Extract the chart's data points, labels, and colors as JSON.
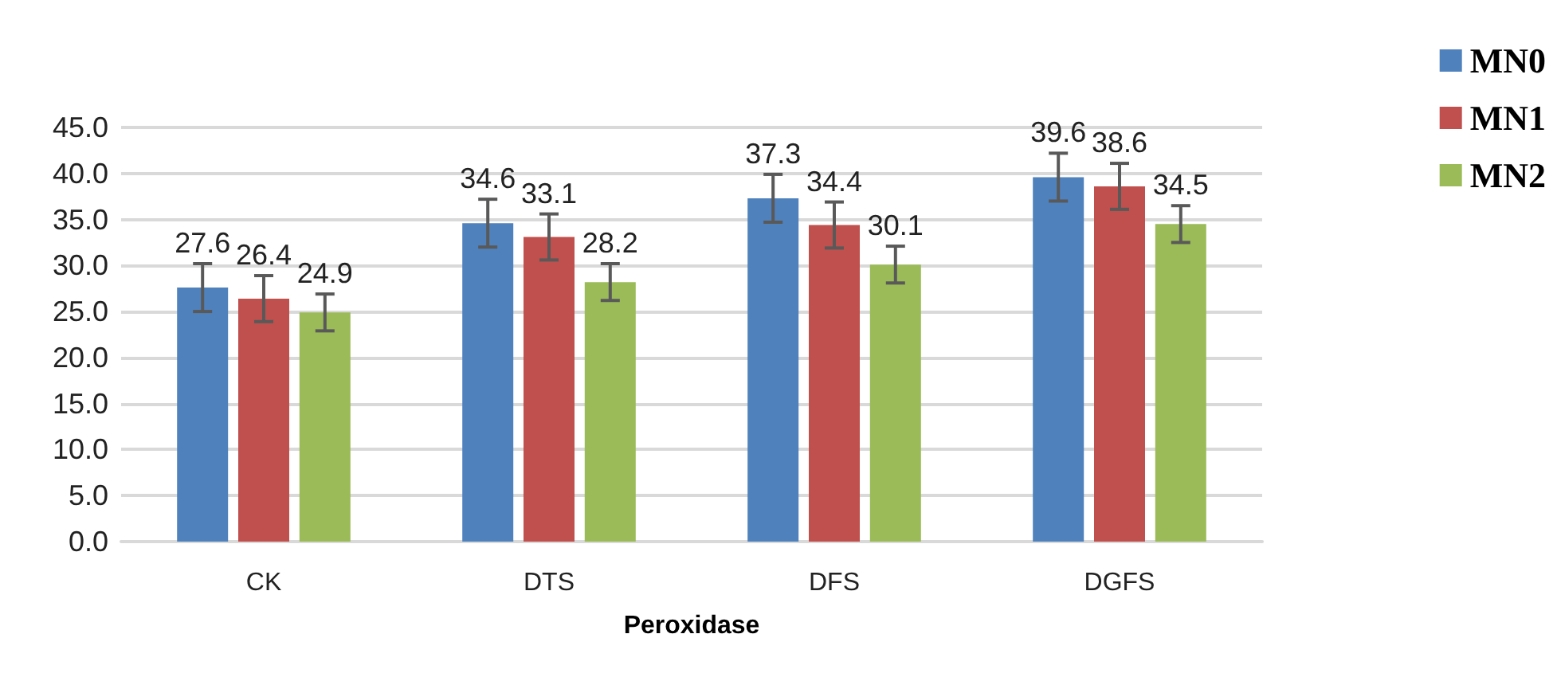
{
  "chart_data": {
    "type": "bar",
    "xlabel": "Peroxidase",
    "categories": [
      "CK",
      "DTS",
      "DFS",
      "DGFS"
    ],
    "series": [
      {
        "name": "MN0",
        "color": "#4f81bd",
        "values": [
          27.6,
          34.6,
          37.3,
          39.6
        ],
        "errors": [
          2.6,
          2.6,
          2.6,
          2.6
        ]
      },
      {
        "name": "MN1",
        "color": "#c0504d",
        "values": [
          26.4,
          33.1,
          34.4,
          38.6
        ],
        "errors": [
          2.5,
          2.5,
          2.5,
          2.5
        ]
      },
      {
        "name": "MN2",
        "color": "#9bbb59",
        "values": [
          24.9,
          28.2,
          30.1,
          34.5
        ],
        "errors": [
          2.0,
          2.0,
          2.0,
          2.0
        ]
      }
    ],
    "ylim": [
      0,
      45
    ],
    "yticks": [
      {
        "value": 0,
        "label": "0.0"
      },
      {
        "value": 5,
        "label": "5.0"
      },
      {
        "value": 10,
        "label": "10.0"
      },
      {
        "value": 15,
        "label": "15.0"
      },
      {
        "value": 20,
        "label": "20.0"
      },
      {
        "value": 25,
        "label": "25.0"
      },
      {
        "value": 30,
        "label": "30.0"
      },
      {
        "value": 35,
        "label": "35.0"
      },
      {
        "value": 40,
        "label": "40.0"
      },
      {
        "value": 45,
        "label": "45.0"
      }
    ],
    "data_labels": true,
    "grid": "y",
    "legend": "top right"
  }
}
